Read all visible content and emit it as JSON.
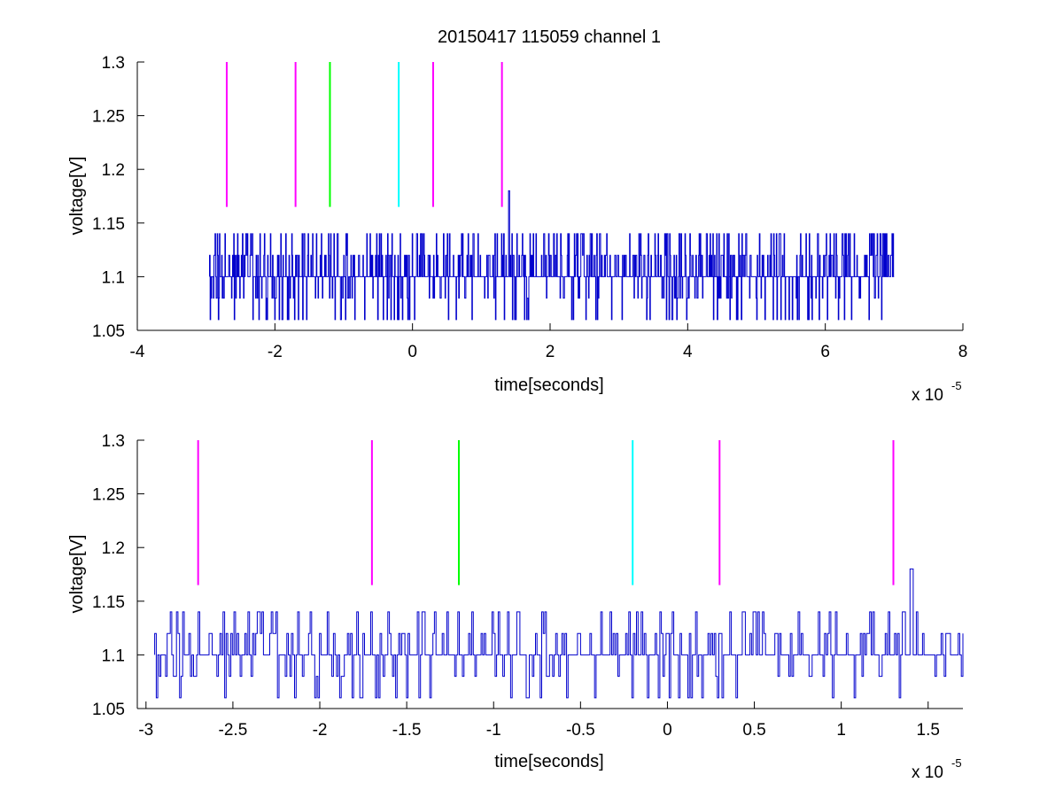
{
  "chart_data": [
    {
      "type": "line",
      "title": "20150417 115059 channel 1",
      "xlabel": "time[seconds]",
      "ylabel": "voltage[V]",
      "x_multiplier_label": "x 10",
      "x_multiplier_exponent": "-5",
      "xlim": [
        -4,
        8
      ],
      "ylim": [
        1.05,
        1.3
      ],
      "xticks": [
        -4,
        -2,
        0,
        2,
        4,
        6,
        8
      ],
      "xtick_labels": [
        "-4",
        "-2",
        "0",
        "2",
        "4",
        "6",
        "8"
      ],
      "yticks": [
        1.05,
        1.1,
        1.15,
        1.2,
        1.25,
        1.3
      ],
      "ytick_labels": [
        "1.05",
        "1.1",
        "1.15",
        "1.2",
        "1.25",
        "1.3"
      ],
      "grid": false,
      "markers": [
        {
          "x": -2.7,
          "color": "#ff00ff"
        },
        {
          "x": -1.7,
          "color": "#ff00ff"
        },
        {
          "x": -1.2,
          "color": "#00ff00"
        },
        {
          "x": -0.2,
          "color": "#00ffff"
        },
        {
          "x": 0.3,
          "color": "#ff00ff"
        },
        {
          "x": 1.3,
          "color": "#ff00ff"
        }
      ],
      "marker_y_range": [
        1.165,
        1.3
      ],
      "series": [
        {
          "color": "#0000cc",
          "x_range": [
            -2.95,
            7.0
          ],
          "base": 1.1,
          "levels": [
            1.06,
            1.08,
            1.1,
            1.12,
            1.14
          ],
          "spike": {
            "x": 1.4,
            "y": 1.18
          }
        }
      ]
    },
    {
      "type": "line",
      "title": "",
      "xlabel": "time[seconds]",
      "ylabel": "voltage[V]",
      "x_multiplier_label": "x 10",
      "x_multiplier_exponent": "-5",
      "xlim": [
        -3.05,
        1.7
      ],
      "ylim": [
        1.05,
        1.3
      ],
      "xticks": [
        -3,
        -2.5,
        -2,
        -1.5,
        -1,
        -0.5,
        0,
        0.5,
        1,
        1.5
      ],
      "xtick_labels": [
        "-3",
        "-2.5",
        "-2",
        "-1.5",
        "-1",
        "-0.5",
        "0",
        "0.5",
        "1",
        "1.5"
      ],
      "yticks": [
        1.05,
        1.1,
        1.15,
        1.2,
        1.25,
        1.3
      ],
      "ytick_labels": [
        "1.05",
        "1.1",
        "1.15",
        "1.2",
        "1.25",
        "1.3"
      ],
      "grid": false,
      "markers": [
        {
          "x": -2.7,
          "color": "#ff00ff"
        },
        {
          "x": -1.7,
          "color": "#ff00ff"
        },
        {
          "x": -1.2,
          "color": "#00ff00"
        },
        {
          "x": -0.2,
          "color": "#00ffff"
        },
        {
          "x": 0.3,
          "color": "#ff00ff"
        },
        {
          "x": 1.3,
          "color": "#ff00ff"
        }
      ],
      "marker_y_range": [
        1.165,
        1.3
      ],
      "series": [
        {
          "color": "#0000cc",
          "x_range": [
            -2.95,
            1.7
          ],
          "base": 1.1,
          "levels": [
            1.06,
            1.08,
            1.1,
            1.12,
            1.14
          ],
          "spike": {
            "x": 1.4,
            "y": 1.18
          }
        }
      ]
    }
  ]
}
